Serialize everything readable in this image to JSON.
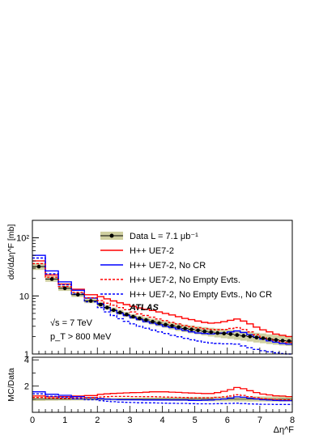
{
  "chart_data": [
    {
      "type": "line",
      "panel": "main",
      "title": "",
      "xlabel": "Δη^F",
      "ylabel": "dσ/dΔη^F [mb]",
      "xlim": [
        0,
        8
      ],
      "ylim": [
        1,
        200
      ],
      "yscale": "log",
      "x_ticks": [
        "0",
        "1",
        "2",
        "3",
        "4",
        "5",
        "6",
        "7",
        "8"
      ],
      "y_ticks": [
        "1",
        "10",
        "10²"
      ],
      "bin_edges": [
        0,
        0.4,
        0.8,
        1.2,
        1.6,
        2.0,
        2.2,
        2.4,
        2.6,
        2.8,
        3.0,
        3.2,
        3.4,
        3.6,
        3.8,
        4.0,
        4.2,
        4.4,
        4.6,
        4.8,
        5.0,
        5.2,
        5.4,
        5.6,
        5.8,
        6.0,
        6.2,
        6.4,
        6.6,
        6.8,
        7.0,
        7.2,
        7.4,
        7.6,
        7.8,
        8.0
      ],
      "legend_position": "top-right",
      "grid": false,
      "series": [
        {
          "name": "Data L = 7.1 μb⁻¹",
          "style": "points-with-band",
          "color": "#000000",
          "band_color": "#cfcfa0",
          "values": [
            32,
            19.5,
            13.5,
            10.5,
            8.2,
            7.1,
            6.3,
            5.7,
            5.2,
            4.8,
            4.4,
            4.1,
            3.85,
            3.6,
            3.4,
            3.2,
            3.05,
            2.9,
            2.75,
            2.65,
            2.55,
            2.45,
            2.38,
            2.3,
            2.25,
            2.2,
            2.12,
            2.05,
            2.0,
            1.92,
            1.87,
            1.8,
            1.75,
            1.7,
            1.67
          ],
          "band_lo": [
            28,
            17.5,
            12.2,
            9.6,
            7.5,
            6.5,
            5.8,
            5.2,
            4.75,
            4.35,
            4.0,
            3.7,
            3.45,
            3.2,
            3.0,
            2.82,
            2.65,
            2.5,
            2.38,
            2.28,
            2.18,
            2.08,
            2.0,
            1.93,
            1.87,
            1.82,
            1.76,
            1.7,
            1.64,
            1.58,
            1.53,
            1.48,
            1.44,
            1.4,
            1.38
          ],
          "band_hi": [
            37,
            22,
            15,
            11.6,
            9.1,
            7.9,
            7.0,
            6.3,
            5.75,
            5.3,
            4.85,
            4.55,
            4.3,
            4.05,
            3.85,
            3.65,
            3.5,
            3.35,
            3.2,
            3.1,
            3.0,
            2.9,
            2.82,
            2.74,
            2.68,
            2.62,
            2.54,
            2.46,
            2.4,
            2.32,
            2.26,
            2.18,
            2.12,
            2.06,
            2.02
          ]
        },
        {
          "name": "H++ UE7-2",
          "style": "solid",
          "color": "#ff0000",
          "values": [
            40,
            23,
            16,
            13,
            10.5,
            9.7,
            8.9,
            8.2,
            7.6,
            7.1,
            6.6,
            6.2,
            5.9,
            5.6,
            5.3,
            5.0,
            4.7,
            4.4,
            4.1,
            3.9,
            3.7,
            3.5,
            3.4,
            3.45,
            3.6,
            3.8,
            4.0,
            3.7,
            3.3,
            2.9,
            2.6,
            2.4,
            2.2,
            2.1,
            2.0
          ]
        },
        {
          "name": "H++ UE7-2, No CR",
          "style": "solid",
          "color": "#0000ff",
          "values": [
            50,
            27,
            17.5,
            12.5,
            9.2,
            7.4,
            6.3,
            5.6,
            5.0,
            4.6,
            4.2,
            3.9,
            3.6,
            3.4,
            3.2,
            3.0,
            2.85,
            2.7,
            2.55,
            2.4,
            2.3,
            2.25,
            2.22,
            2.25,
            2.3,
            2.4,
            2.5,
            2.35,
            2.15,
            1.95,
            1.8,
            1.68,
            1.6,
            1.52,
            1.48
          ]
        },
        {
          "name": "H++ UE7-2, No Empty Evts.",
          "style": "dashed",
          "color": "#ff0000",
          "values": [
            36,
            21,
            14.5,
            11.5,
            9.3,
            8.3,
            7.5,
            6.9,
            6.3,
            5.8,
            5.3,
            4.9,
            4.6,
            4.3,
            4.0,
            3.75,
            3.5,
            3.3,
            3.1,
            2.95,
            2.82,
            2.72,
            2.65,
            2.62,
            2.65,
            2.75,
            2.85,
            2.65,
            2.4,
            2.15,
            1.95,
            1.82,
            1.72,
            1.64,
            1.58
          ]
        },
        {
          "name": "H++ UE7-2, No Empty Evts., No CR",
          "style": "dashed",
          "color": "#0000ff",
          "values": [
            45,
            24,
            15.5,
            10.8,
            7.9,
            6.3,
            5.3,
            4.6,
            4.05,
            3.65,
            3.3,
            3.0,
            2.78,
            2.58,
            2.4,
            2.25,
            2.1,
            1.98,
            1.86,
            1.76,
            1.67,
            1.6,
            1.55,
            1.52,
            1.5,
            1.5,
            1.48,
            1.38,
            1.28,
            1.2,
            1.14,
            1.09,
            1.05,
            1.02,
            1.0
          ]
        }
      ],
      "annotations": [
        "ATLAS",
        "√s = 7 TeV",
        "p_T > 800 MeV"
      ]
    },
    {
      "type": "line",
      "panel": "ratio",
      "title": "",
      "xlabel": "Δη^F",
      "ylabel": "MC/Data",
      "xlim": [
        0,
        8
      ],
      "ylim": [
        0,
        4.2
      ],
      "y_ticks": [
        "2",
        "4"
      ],
      "bin_edges": [
        0,
        0.4,
        0.8,
        1.2,
        1.6,
        2.0,
        2.2,
        2.4,
        2.6,
        2.8,
        3.0,
        3.2,
        3.4,
        3.6,
        3.8,
        4.0,
        4.2,
        4.4,
        4.6,
        4.8,
        5.0,
        5.2,
        5.4,
        5.6,
        5.8,
        6.0,
        6.2,
        6.4,
        6.6,
        6.8,
        7.0,
        7.2,
        7.4,
        7.6,
        7.8,
        8.0
      ],
      "grid": false,
      "band": {
        "color": "#cfcfa0",
        "lo": [
          0.87,
          0.89,
          0.9,
          0.91,
          0.91,
          0.91,
          0.92,
          0.91,
          0.91,
          0.9,
          0.91,
          0.9,
          0.9,
          0.89,
          0.88,
          0.88,
          0.87,
          0.86,
          0.87,
          0.86,
          0.85,
          0.85,
          0.84,
          0.84,
          0.83,
          0.83,
          0.83,
          0.83,
          0.82,
          0.82,
          0.82,
          0.82,
          0.82,
          0.82,
          0.83
        ],
        "hi": [
          1.15,
          1.13,
          1.11,
          1.1,
          1.11,
          1.11,
          1.11,
          1.1,
          1.1,
          1.1,
          1.1,
          1.11,
          1.12,
          1.12,
          1.13,
          1.14,
          1.15,
          1.16,
          1.16,
          1.17,
          1.18,
          1.18,
          1.18,
          1.19,
          1.19,
          1.19,
          1.2,
          1.2,
          1.2,
          1.21,
          1.21,
          1.21,
          1.21,
          1.21,
          1.21
        ]
      },
      "series": [
        {
          "name": "H++ UE7-2",
          "style": "solid",
          "color": "#ff0000",
          "values": [
            1.25,
            1.18,
            1.19,
            1.24,
            1.28,
            1.37,
            1.41,
            1.44,
            1.46,
            1.48,
            1.5,
            1.51,
            1.53,
            1.56,
            1.56,
            1.56,
            1.54,
            1.52,
            1.49,
            1.47,
            1.45,
            1.43,
            1.43,
            1.5,
            1.6,
            1.73,
            1.89,
            1.8,
            1.65,
            1.51,
            1.39,
            1.33,
            1.26,
            1.24,
            1.2
          ]
        },
        {
          "name": "H++ UE7-2, No CR",
          "style": "solid",
          "color": "#0000ff",
          "values": [
            1.56,
            1.38,
            1.3,
            1.19,
            1.12,
            1.04,
            1.0,
            0.98,
            0.96,
            0.96,
            0.95,
            0.95,
            0.94,
            0.94,
            0.94,
            0.94,
            0.93,
            0.93,
            0.93,
            0.91,
            0.9,
            0.92,
            0.93,
            0.98,
            1.02,
            1.09,
            1.18,
            1.15,
            1.08,
            1.02,
            0.96,
            0.93,
            0.91,
            0.89,
            0.89
          ]
        },
        {
          "name": "H++ UE7-2, No Empty Evts.",
          "style": "dashed",
          "color": "#ff0000",
          "values": [
            1.13,
            1.08,
            1.07,
            1.1,
            1.13,
            1.17,
            1.19,
            1.21,
            1.21,
            1.21,
            1.2,
            1.2,
            1.19,
            1.19,
            1.18,
            1.17,
            1.15,
            1.14,
            1.13,
            1.11,
            1.11,
            1.11,
            1.11,
            1.14,
            1.18,
            1.25,
            1.34,
            1.29,
            1.2,
            1.12,
            1.04,
            1.01,
            0.98,
            0.96,
            0.95
          ]
        },
        {
          "name": "H++ UE7-2, No Empty Evts., No CR",
          "style": "dashed",
          "color": "#0000ff",
          "values": [
            1.41,
            1.23,
            1.15,
            1.03,
            0.96,
            0.89,
            0.84,
            0.81,
            0.78,
            0.76,
            0.75,
            0.73,
            0.72,
            0.72,
            0.71,
            0.7,
            0.69,
            0.68,
            0.68,
            0.66,
            0.65,
            0.65,
            0.65,
            0.66,
            0.67,
            0.68,
            0.7,
            0.67,
            0.64,
            0.63,
            0.61,
            0.61,
            0.6,
            0.6,
            0.6
          ]
        }
      ]
    }
  ],
  "legend": {
    "data_label": "Data L = 7.1 μb⁻¹",
    "ue72_label": "H++ UE7-2",
    "ue72_nocr_label": "H++ UE7-2, No CR",
    "ue72_noempty_label": "H++ UE7-2, No Empty Evts.",
    "ue72_noempty_nocr_label": "H++ UE7-2, No Empty Evts., No CR"
  },
  "annotations": {
    "experiment": "ATLAS",
    "energy": "√s = 7 TeV",
    "pt_cut": "p_T > 800 MeV"
  },
  "axes": {
    "main_ylabel": "dσ/dΔη^F [mb]",
    "ratio_ylabel": "MC/Data",
    "xlabel": "Δη^F",
    "x_ticks": [
      "0",
      "1",
      "2",
      "3",
      "4",
      "5",
      "6",
      "7",
      "8"
    ],
    "main_y_ticks": [
      "1",
      "10",
      "10²"
    ],
    "ratio_y_ticks": [
      "2",
      "4"
    ]
  }
}
